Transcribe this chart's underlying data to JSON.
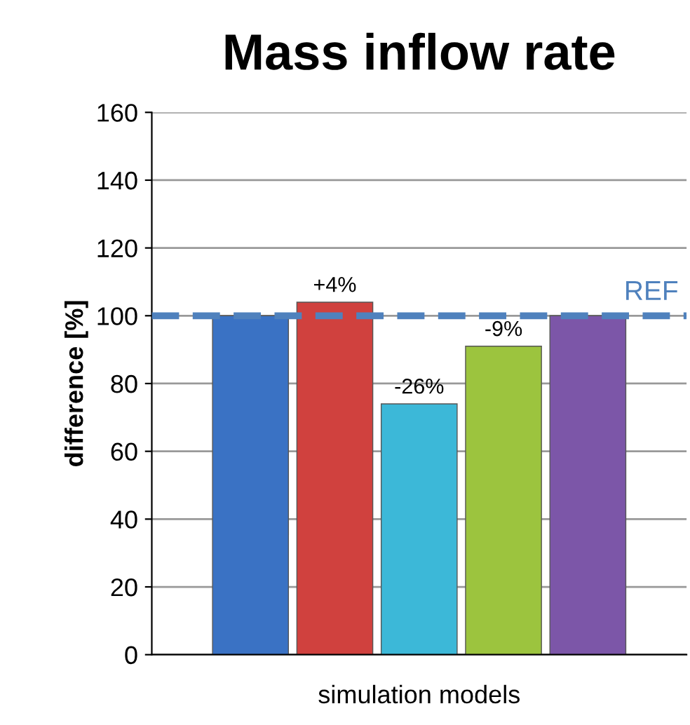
{
  "chart_data": {
    "type": "bar",
    "title": "Mass inflow rate",
    "xlabel": "simulation models",
    "ylabel": "difference [%]",
    "categories": [
      null,
      null,
      null,
      null,
      null
    ],
    "values": [
      100,
      104,
      74,
      91,
      100
    ],
    "colors": [
      "#3a72c4",
      "#d0413e",
      "#3cb8d8",
      "#9cc43e",
      "#7c56a8"
    ],
    "annotations": [
      {
        "text": "+4%",
        "y": 104
      },
      {
        "text": "-26%",
        "y": 74
      },
      {
        "text": "-9%",
        "y": 91
      }
    ],
    "ylim": [
      0,
      160
    ],
    "yticks": [
      0,
      20,
      40,
      60,
      80,
      100,
      120,
      140,
      160
    ],
    "grid": "y",
    "ref_lines": [
      {
        "axis": "y",
        "value": 100,
        "label": "REF",
        "color": "#4f81bd",
        "line_style": "dashed"
      }
    ]
  }
}
